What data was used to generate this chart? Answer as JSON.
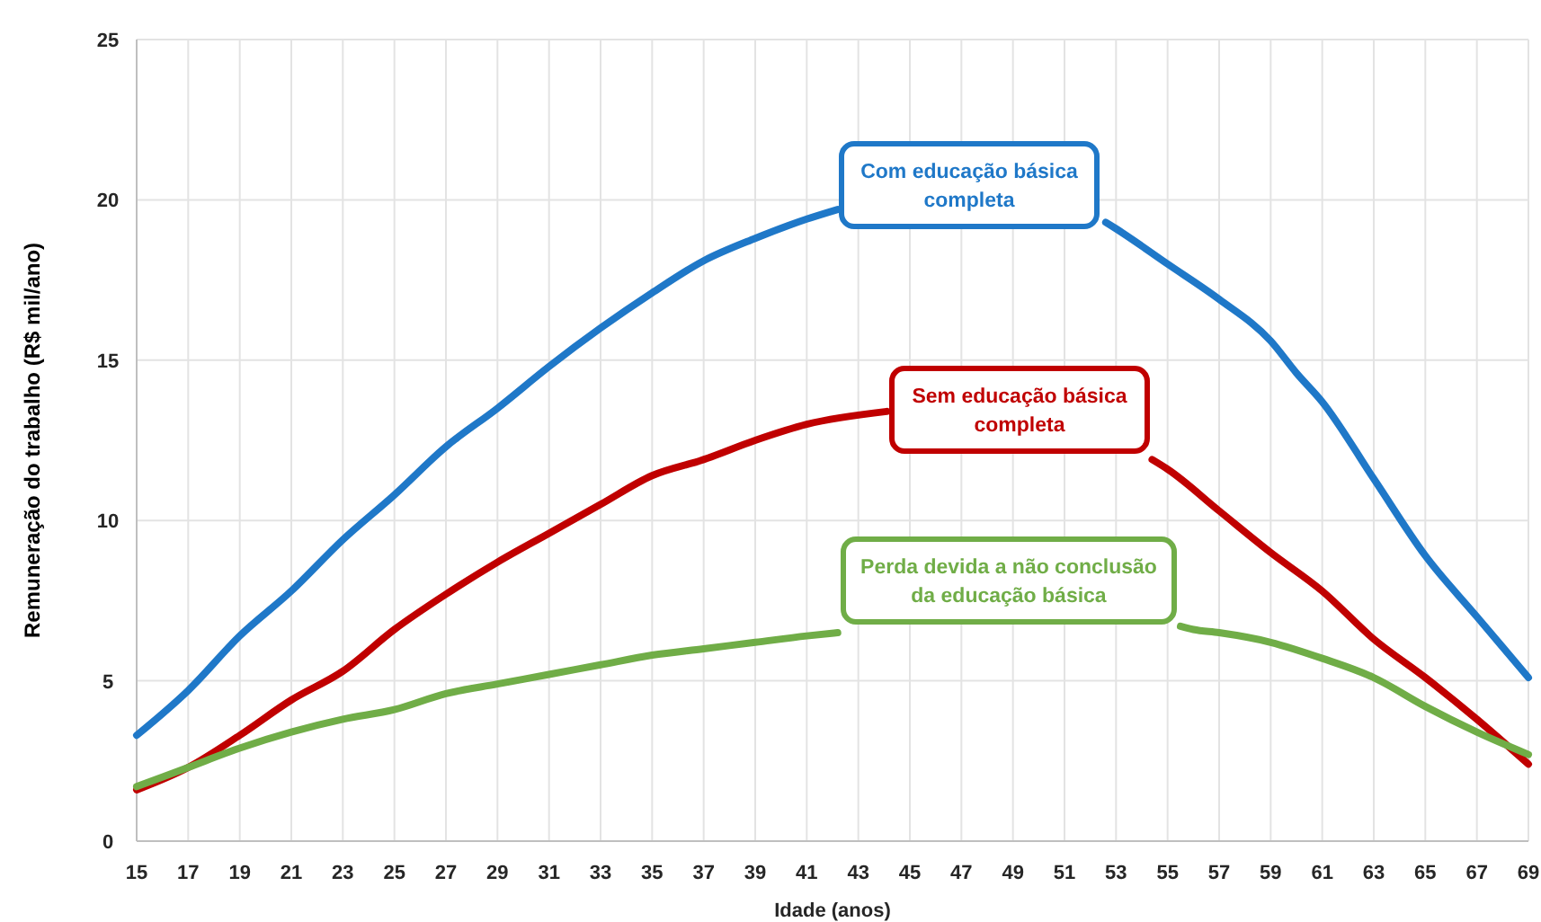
{
  "chart_data": {
    "type": "line",
    "xlabel": "Idade (anos)",
    "ylabel": "Remuneração do trabalho (R$ mil/ano)",
    "xlim": [
      15,
      69
    ],
    "xticks": [
      15,
      17,
      19,
      21,
      23,
      25,
      27,
      29,
      31,
      33,
      35,
      37,
      39,
      41,
      43,
      45,
      47,
      49,
      51,
      53,
      55,
      57,
      59,
      61,
      63,
      65,
      67,
      69
    ],
    "ylim": [
      0,
      25
    ],
    "yticks": [
      0,
      5,
      10,
      15,
      20,
      25
    ],
    "grid": true,
    "legend": false,
    "line_style": "solid",
    "marker": "none",
    "series": [
      {
        "name": "Com educação básica completa",
        "color": "#1f78c8",
        "x": [
          15,
          17,
          19,
          21,
          23,
          25,
          27,
          29,
          31,
          33,
          35,
          37,
          39,
          41,
          42.2,
          47,
          52.6,
          53,
          55,
          57,
          59,
          60,
          61,
          63,
          65,
          67,
          69
        ],
        "values": [
          3.3,
          4.7,
          6.4,
          7.8,
          9.4,
          10.8,
          12.3,
          13.5,
          14.8,
          16.0,
          17.1,
          18.1,
          18.8,
          19.4,
          19.7,
          null,
          19.3,
          19.1,
          18.0,
          16.9,
          15.6,
          14.6,
          13.7,
          11.3,
          8.9,
          7.0,
          5.1
        ]
      },
      {
        "name": "Sem educação básica completa",
        "color": "#c00000",
        "x": [
          15,
          17,
          19,
          21,
          23,
          25,
          27,
          29,
          31,
          33,
          35,
          37,
          39,
          41,
          44.1,
          49,
          54.4,
          55,
          57,
          59,
          61,
          63,
          65,
          67,
          69
        ],
        "values": [
          1.6,
          2.3,
          3.3,
          4.4,
          5.3,
          6.6,
          7.7,
          8.7,
          9.6,
          10.5,
          11.4,
          11.9,
          12.5,
          13.0,
          13.4,
          null,
          11.9,
          11.6,
          10.3,
          9.0,
          7.8,
          6.3,
          5.1,
          3.8,
          2.4
        ]
      },
      {
        "name": "Perda devida a não conclusão da educação básica",
        "color": "#70ad47",
        "x": [
          15,
          17,
          19,
          21,
          23,
          25,
          27,
          29,
          31,
          33,
          35,
          37,
          39,
          41,
          42.2,
          49,
          55.5,
          56,
          57,
          59,
          61,
          63,
          65,
          67,
          69
        ],
        "values": [
          1.7,
          2.3,
          2.9,
          3.4,
          3.8,
          4.1,
          4.6,
          4.9,
          5.2,
          5.5,
          5.8,
          6.0,
          6.2,
          6.4,
          6.5,
          null,
          6.7,
          6.6,
          6.5,
          6.2,
          5.7,
          5.1,
          4.2,
          3.4,
          2.7
        ]
      }
    ]
  }
}
